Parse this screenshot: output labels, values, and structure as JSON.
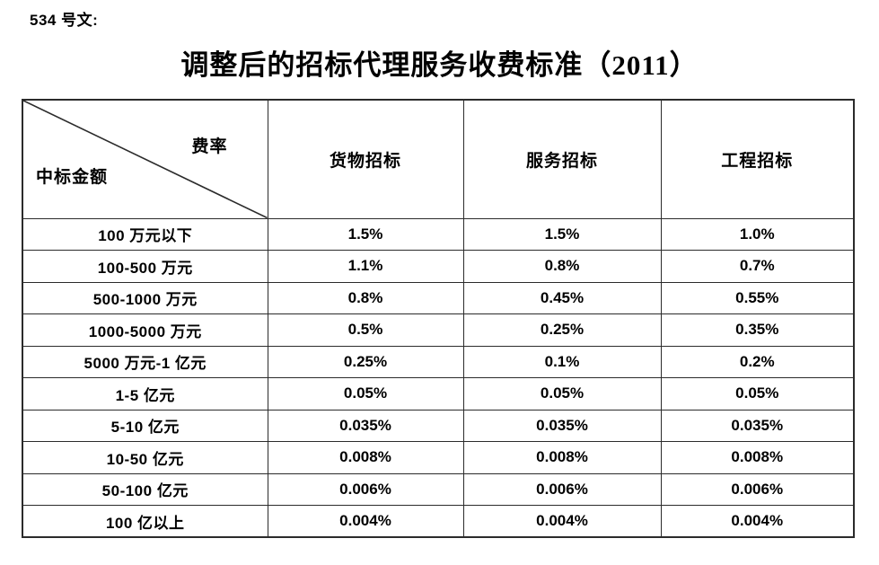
{
  "doc": {
    "label": "534 号文:",
    "title": "调整后的招标代理服务收费标准（2011）"
  },
  "table": {
    "corner": {
      "top_right": "费率",
      "bottom_left": "中标金额"
    },
    "columns": [
      "货物招标",
      "服务招标",
      "工程招标"
    ],
    "rows": [
      {
        "label": "100 万元以下",
        "values": [
          "1.5%",
          "1.5%",
          "1.0%"
        ]
      },
      {
        "label": "100-500 万元",
        "values": [
          "1.1%",
          "0.8%",
          "0.7%"
        ]
      },
      {
        "label": "500-1000 万元",
        "values": [
          "0.8%",
          "0.45%",
          "0.55%"
        ]
      },
      {
        "label": "1000-5000 万元",
        "values": [
          "0.5%",
          "0.25%",
          "0.35%"
        ]
      },
      {
        "label": "5000 万元-1 亿元",
        "values": [
          "0.25%",
          "0.1%",
          "0.2%"
        ]
      },
      {
        "label": "1-5 亿元",
        "values": [
          "0.05%",
          "0.05%",
          "0.05%"
        ]
      },
      {
        "label": "5-10 亿元",
        "values": [
          "0.035%",
          "0.035%",
          "0.035%"
        ]
      },
      {
        "label": "10-50 亿元",
        "values": [
          "0.008%",
          "0.008%",
          "0.008%"
        ]
      },
      {
        "label": "50-100 亿元",
        "values": [
          "0.006%",
          "0.006%",
          "0.006%"
        ]
      },
      {
        "label": "100 亿以上",
        "values": [
          "0.004%",
          "0.004%",
          "0.004%"
        ]
      }
    ]
  },
  "colors": {
    "text": "#000000",
    "border": "#2b2b2b",
    "background": "#ffffff"
  }
}
